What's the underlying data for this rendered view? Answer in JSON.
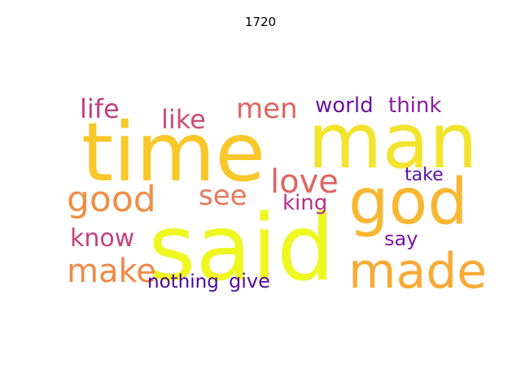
{
  "title": "1720",
  "words": [
    {
      "id": "said",
      "text": "said",
      "color": "#eef720"
    },
    {
      "id": "time",
      "text": "time",
      "color": "#f8c72a"
    },
    {
      "id": "man",
      "text": "man",
      "color": "#f2e32c"
    },
    {
      "id": "god",
      "text": "god",
      "color": "#f8b733"
    },
    {
      "id": "made",
      "text": "made",
      "color": "#f9aa36"
    },
    {
      "id": "good",
      "text": "good",
      "color": "#f08e45"
    },
    {
      "id": "make",
      "text": "make",
      "color": "#ee8a48"
    },
    {
      "id": "love",
      "text": "love",
      "color": "#e06462"
    },
    {
      "id": "see",
      "text": "see",
      "color": "#e8775a"
    },
    {
      "id": "men",
      "text": "men",
      "color": "#e06462"
    },
    {
      "id": "life",
      "text": "life",
      "color": "#c33b82"
    },
    {
      "id": "like",
      "text": "like",
      "color": "#d04c77"
    },
    {
      "id": "know",
      "text": "know",
      "color": "#c6427f"
    },
    {
      "id": "king",
      "text": "king",
      "color": "#b52f8c"
    },
    {
      "id": "world",
      "text": "world",
      "color": "#6a13a1"
    },
    {
      "id": "think",
      "text": "think",
      "color": "#8e1da1"
    },
    {
      "id": "take",
      "text": "take",
      "color": "#5d0ea3"
    },
    {
      "id": "say",
      "text": "say",
      "color": "#7d12a5"
    },
    {
      "id": "nothing",
      "text": "nothing",
      "color": "#4a08a0"
    },
    {
      "id": "give",
      "text": "give",
      "color": "#5a0ca2"
    }
  ]
}
